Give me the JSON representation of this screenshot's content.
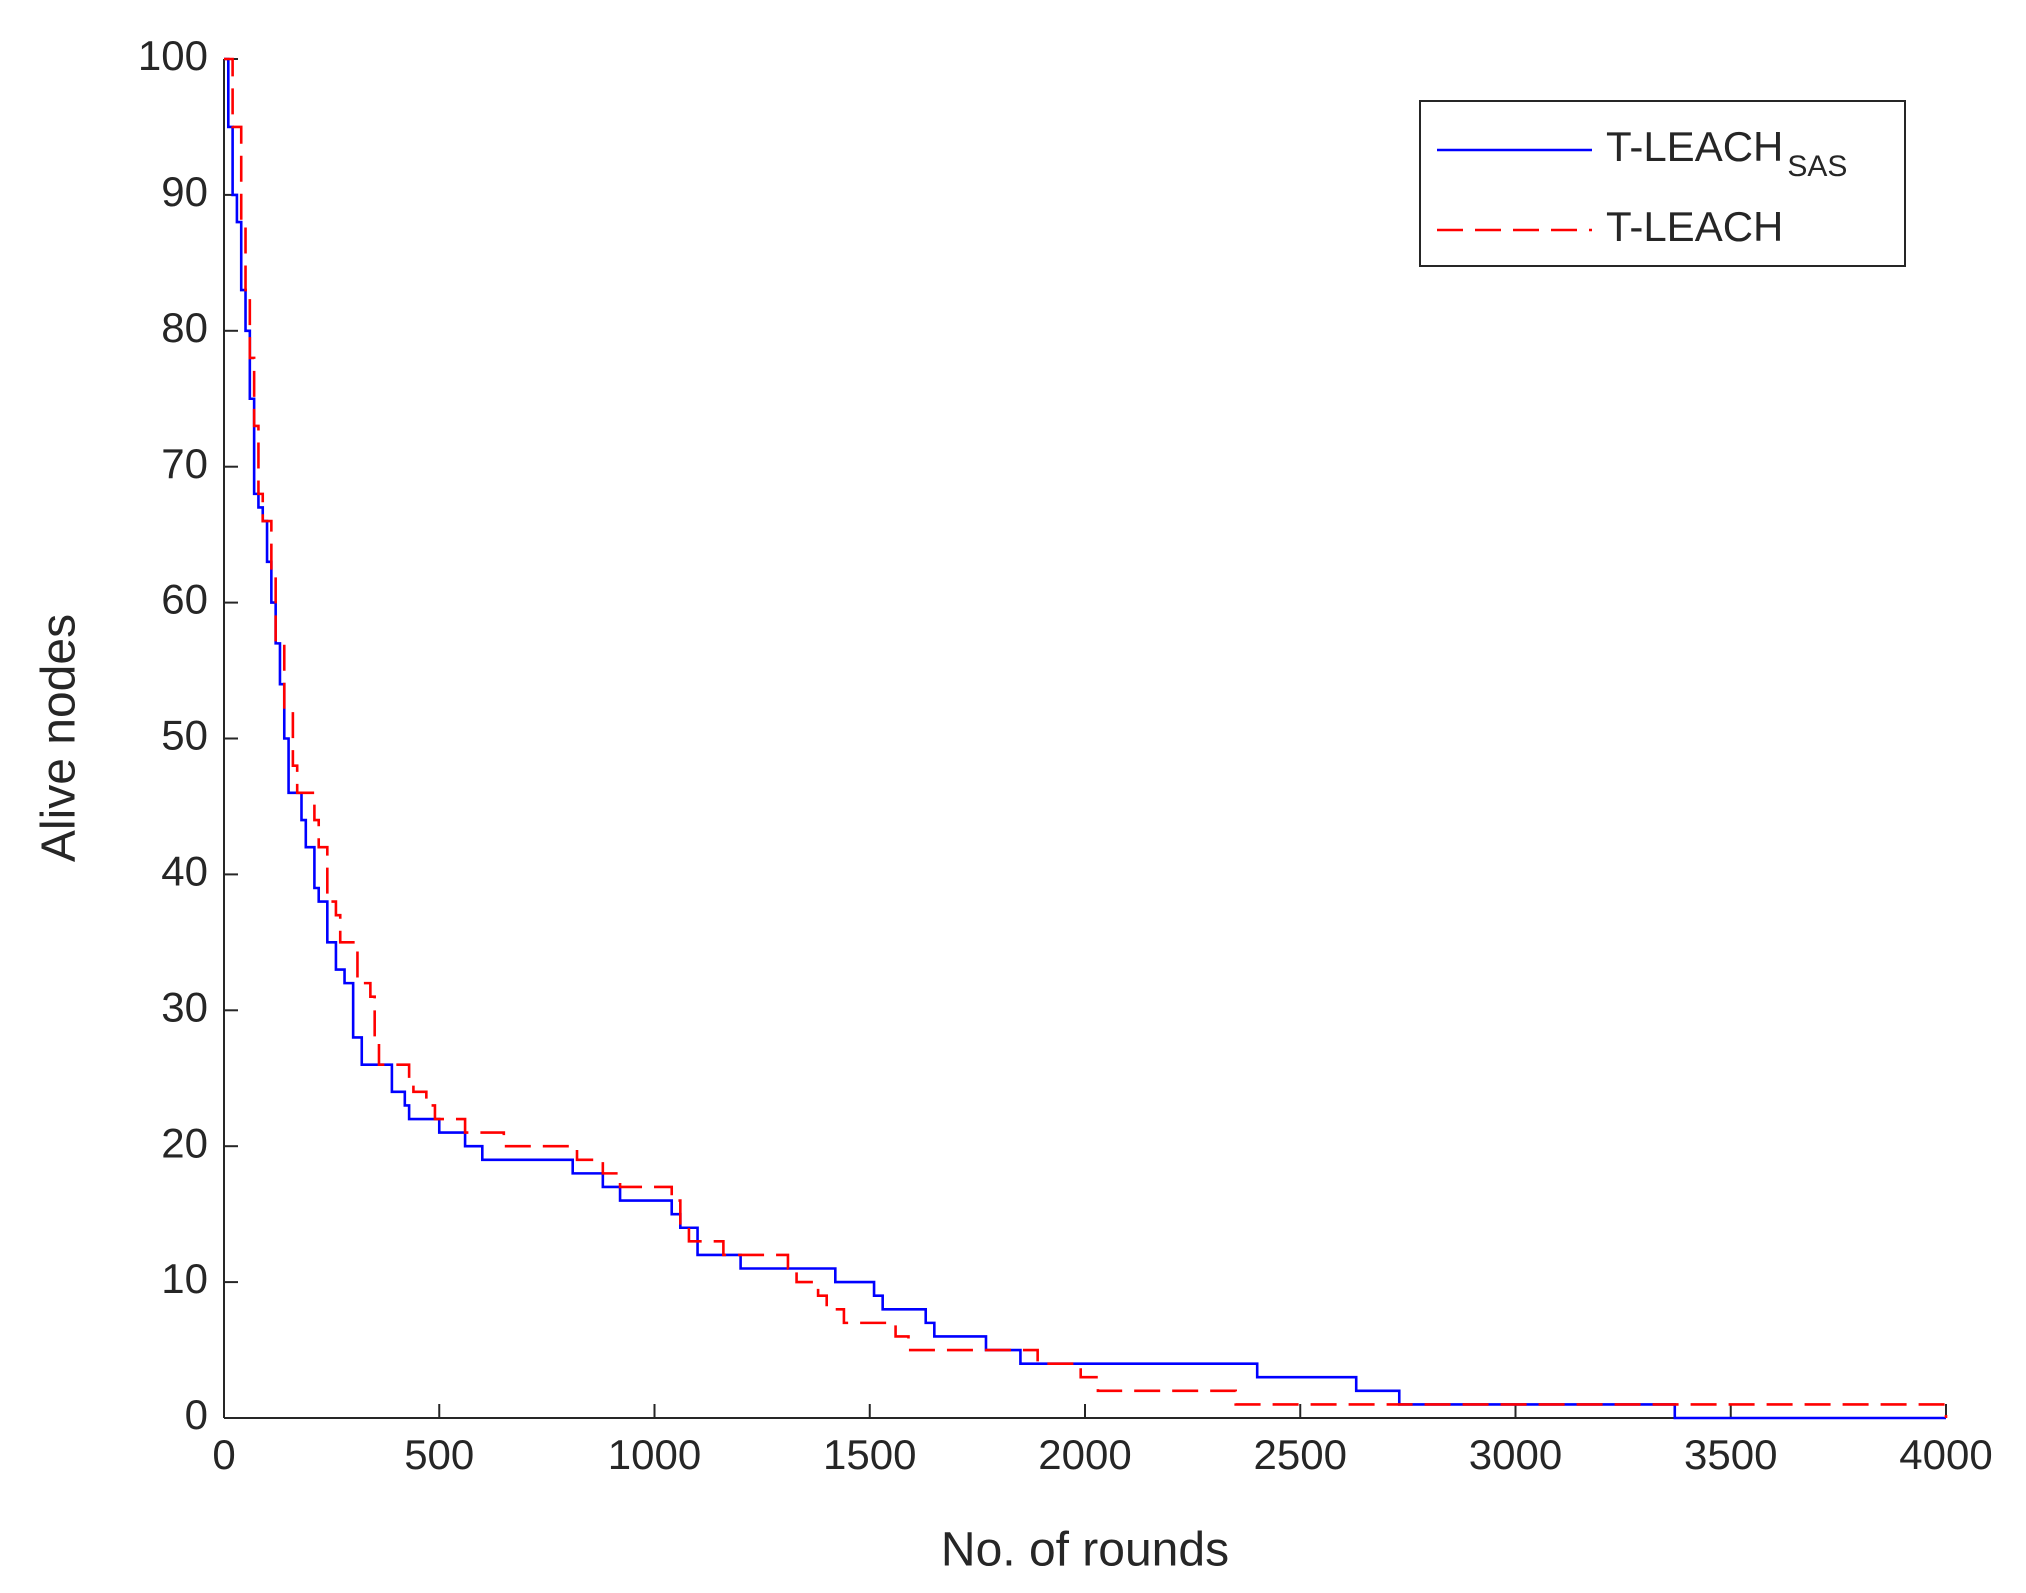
{
  "chart_data": {
    "type": "line",
    "drawstyle": "steps-post",
    "x_label": "No. of rounds",
    "y_label": "Alive nodes",
    "xlim": [
      0,
      4000
    ],
    "ylim": [
      0,
      100
    ],
    "xticks": [
      0,
      500,
      1000,
      1500,
      2000,
      2500,
      3000,
      3500,
      4000
    ],
    "yticks": [
      0,
      10,
      20,
      30,
      40,
      50,
      60,
      70,
      80,
      90,
      100
    ],
    "legend_position": "upper right",
    "series": [
      {
        "name": "T-LEACH",
        "subscript": "SAS",
        "color": "#0000ff",
        "linestyle": "solid",
        "x": [
          0,
          10,
          20,
          30,
          40,
          50,
          60,
          70,
          80,
          90,
          100,
          110,
          120,
          130,
          140,
          150,
          180,
          190,
          210,
          220,
          240,
          260,
          280,
          300,
          320,
          390,
          420,
          430,
          500,
          560,
          600,
          810,
          880,
          920,
          1040,
          1060,
          1100,
          1200,
          1420,
          1510,
          1530,
          1630,
          1650,
          1770,
          1850,
          2400,
          2630,
          2730,
          3370,
          4000
        ],
        "values": [
          100,
          95,
          90,
          88,
          83,
          80,
          75,
          68,
          67,
          66,
          63,
          60,
          57,
          54,
          50,
          46,
          44,
          42,
          39,
          38,
          35,
          33,
          32,
          28,
          26,
          24,
          23,
          22,
          21,
          20,
          19,
          18,
          17,
          16,
          15,
          14,
          12,
          11,
          10,
          9,
          8,
          7,
          6,
          5,
          4,
          3,
          2,
          1,
          0,
          0
        ]
      },
      {
        "name": "T-LEACH",
        "color": "#ff0000",
        "linestyle": "dashed",
        "x": [
          0,
          20,
          40,
          50,
          60,
          70,
          80,
          90,
          110,
          120,
          140,
          160,
          170,
          210,
          220,
          240,
          260,
          270,
          310,
          340,
          350,
          360,
          430,
          440,
          470,
          490,
          560,
          650,
          820,
          880,
          920,
          1040,
          1060,
          1080,
          1160,
          1310,
          1330,
          1380,
          1400,
          1440,
          1560,
          1590,
          1890,
          1990,
          2030,
          2350,
          4000
        ],
        "values": [
          100,
          95,
          88,
          83,
          78,
          73,
          68,
          66,
          62,
          57,
          52,
          48,
          46,
          44,
          42,
          38,
          37,
          35,
          32,
          31,
          28,
          26,
          25,
          24,
          23,
          22,
          21,
          20,
          19,
          18,
          17,
          16,
          14,
          13,
          12,
          11,
          10,
          9,
          8,
          7,
          6,
          5,
          4,
          3,
          2,
          1,
          0
        ]
      }
    ]
  }
}
